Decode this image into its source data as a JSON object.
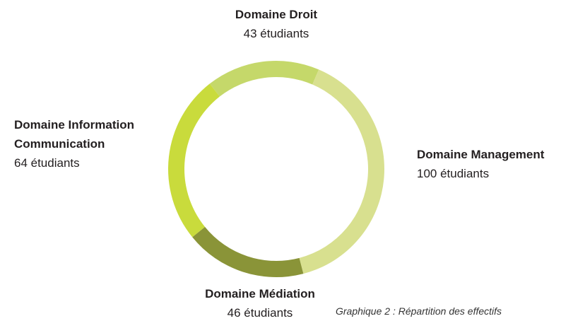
{
  "chart_data": {
    "type": "donut",
    "caption": "Graphique 2 : Répartition des effectifs",
    "categories": [
      "Domaine Droit",
      "Domaine Management",
      "Domaine Médiation",
      "Domaine Information Communication"
    ],
    "values": [
      43,
      100,
      46,
      64
    ],
    "value_labels": [
      "43 étudiants",
      "100 étudiants",
      "46 étudiants",
      "64 étudiants"
    ],
    "colors": [
      "#c5d86a",
      "#d8e08f",
      "#8a9438",
      "#c9db3c"
    ]
  }
}
